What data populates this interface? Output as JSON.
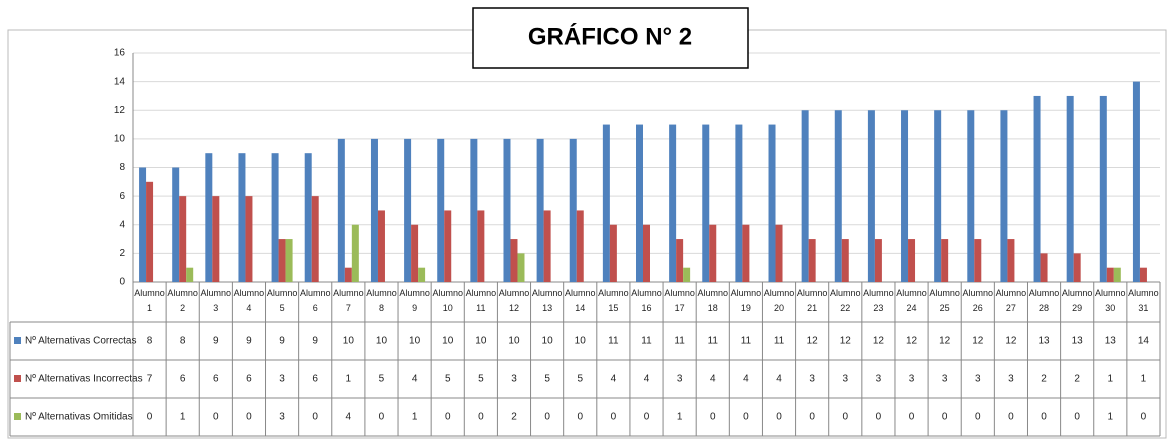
{
  "chart_data": {
    "type": "bar",
    "title": "GRÁFICO N° 2",
    "categories": [
      "Alumno 1",
      "Alumno 2",
      "Alumno 3",
      "Alumno 4",
      "Alumno 5",
      "Alumno 6",
      "Alumno 7",
      "Alumno 8",
      "Alumno 9",
      "Alumno 10",
      "Alumno 11",
      "Alumno 12",
      "Alumno 13",
      "Alumno 14",
      "Alumno 15",
      "Alumno 16",
      "Alumno 17",
      "Alumno 18",
      "Alumno 19",
      "Alumno 20",
      "Alumno 21",
      "Alumno 22",
      "Alumno 23",
      "Alumno 24",
      "Alumno 25",
      "Alumno 26",
      "Alumno 27",
      "Alumno 28",
      "Alumno 29",
      "Alumno 30",
      "Alumno 31"
    ],
    "series": [
      {
        "name": "Nº Alternativas Correctas",
        "color": "#4f81bd",
        "values": [
          8,
          8,
          9,
          9,
          9,
          9,
          10,
          10,
          10,
          10,
          10,
          10,
          10,
          10,
          11,
          11,
          11,
          11,
          11,
          11,
          12,
          12,
          12,
          12,
          12,
          12,
          12,
          13,
          13,
          13,
          14
        ]
      },
      {
        "name": "Nº Alternativas Incorrectas",
        "color": "#c0504d",
        "values": [
          7,
          6,
          6,
          6,
          3,
          6,
          1,
          5,
          4,
          5,
          5,
          3,
          5,
          5,
          4,
          4,
          3,
          4,
          4,
          4,
          3,
          3,
          3,
          3,
          3,
          3,
          3,
          2,
          2,
          1,
          1
        ]
      },
      {
        "name": "Nº Alternativas Omitidas",
        "color": "#9bbb59",
        "values": [
          0,
          1,
          0,
          0,
          3,
          0,
          4,
          0,
          1,
          0,
          0,
          2,
          0,
          0,
          0,
          0,
          1,
          0,
          0,
          0,
          0,
          0,
          0,
          0,
          0,
          0,
          0,
          0,
          0,
          1,
          0
        ]
      }
    ],
    "ylim": [
      0,
      16
    ],
    "yticks": [
      0,
      2,
      4,
      6,
      8,
      10,
      12,
      14,
      16
    ],
    "grid": true
  }
}
